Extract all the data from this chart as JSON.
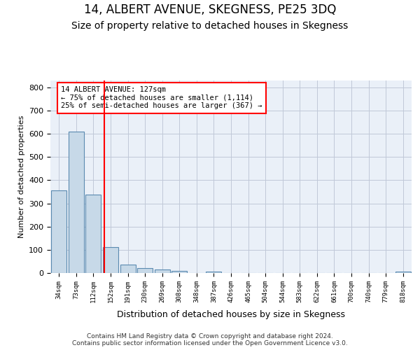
{
  "title": "14, ALBERT AVENUE, SKEGNESS, PE25 3DQ",
  "subtitle": "Size of property relative to detached houses in Skegness",
  "xlabel": "Distribution of detached houses by size in Skegness",
  "ylabel": "Number of detached properties",
  "bar_labels": [
    "34sqm",
    "73sqm",
    "112sqm",
    "152sqm",
    "191sqm",
    "230sqm",
    "269sqm",
    "308sqm",
    "348sqm",
    "387sqm",
    "426sqm",
    "465sqm",
    "504sqm",
    "544sqm",
    "583sqm",
    "622sqm",
    "661sqm",
    "700sqm",
    "740sqm",
    "779sqm",
    "818sqm"
  ],
  "bar_values": [
    357,
    610,
    337,
    113,
    36,
    20,
    16,
    9,
    0,
    7,
    0,
    0,
    0,
    0,
    0,
    0,
    0,
    0,
    0,
    0,
    7
  ],
  "bar_color": "#c7d9e8",
  "bar_edge_color": "#5a8ab0",
  "vline_x": 2.65,
  "vline_color": "red",
  "annotation_text": "14 ALBERT AVENUE: 127sqm\n← 75% of detached houses are smaller (1,114)\n25% of semi-detached houses are larger (367) →",
  "annotation_box_color": "white",
  "annotation_box_edgecolor": "red",
  "ylim": [
    0,
    830
  ],
  "yticks": [
    0,
    100,
    200,
    300,
    400,
    500,
    600,
    700,
    800
  ],
  "footer": "Contains HM Land Registry data © Crown copyright and database right 2024.\nContains public sector information licensed under the Open Government Licence v3.0.",
  "title_fontsize": 12,
  "subtitle_fontsize": 10,
  "grid_color": "#c0c8d8",
  "bg_color": "#eaf0f8"
}
